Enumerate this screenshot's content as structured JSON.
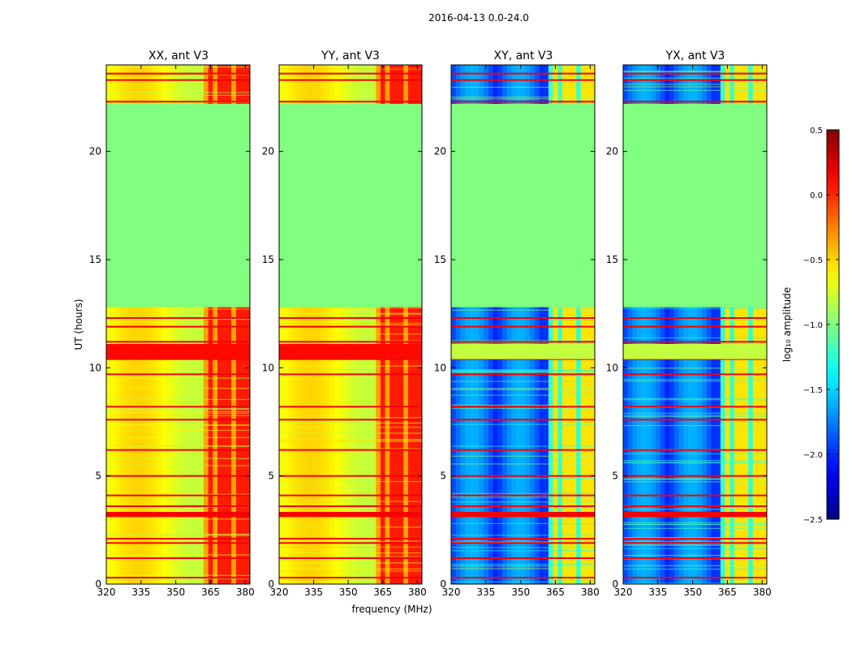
{
  "chart_data": {
    "type": "heatmap",
    "suptitle": "2016-04-13 0.0-24.0",
    "xlabel": "frequency (MHz)",
    "ylabel": "UT (hours)",
    "xlim": [
      320,
      382
    ],
    "ylim": [
      0,
      24
    ],
    "xticks": [
      320,
      335,
      350,
      365,
      380
    ],
    "yticks": [
      0,
      5,
      10,
      15,
      20
    ],
    "gap_hours": [
      12.8,
      22.2
    ],
    "gap_value": -1.0,
    "panels": [
      {
        "title": "XX, ant V3",
        "kind": "parallel",
        "base_value": -0.6,
        "strong_band_value": 0.1
      },
      {
        "title": "YY, ant V3",
        "kind": "parallel",
        "base_value": -0.6,
        "strong_band_value": 0.1
      },
      {
        "title": "XY, ant V3",
        "kind": "cross",
        "base_value": -1.9,
        "strong_band_value": -0.8
      },
      {
        "title": "YX, ant V3",
        "kind": "cross",
        "base_value": -1.9,
        "strong_band_value": -0.8
      }
    ],
    "colorbar": {
      "label": "log₁₀ amplitude",
      "range": [
        -2.5,
        0.5
      ],
      "ticks": [
        0.5,
        0.0,
        -0.5,
        -1.0,
        -1.5,
        -2.0,
        -2.5
      ],
      "tick_labels": [
        "0.5",
        "0.0",
        "−0.5",
        "−1.0",
        "−1.5",
        "−2.0",
        "−2.5"
      ],
      "colormap": "jet"
    },
    "rfi_hours": [
      0.3,
      1.2,
      1.9,
      2.1,
      3.2,
      3.3,
      3.6,
      4.1,
      5.0,
      6.2,
      7.6,
      8.2,
      9.7,
      10.4,
      11.2,
      11.9,
      12.3,
      22.3,
      23.3,
      23.6
    ],
    "strong_band_hours": [
      10.4,
      11.1
    ],
    "bright_channels_mhz": [
      364,
      368,
      371,
      376,
      379
    ]
  }
}
